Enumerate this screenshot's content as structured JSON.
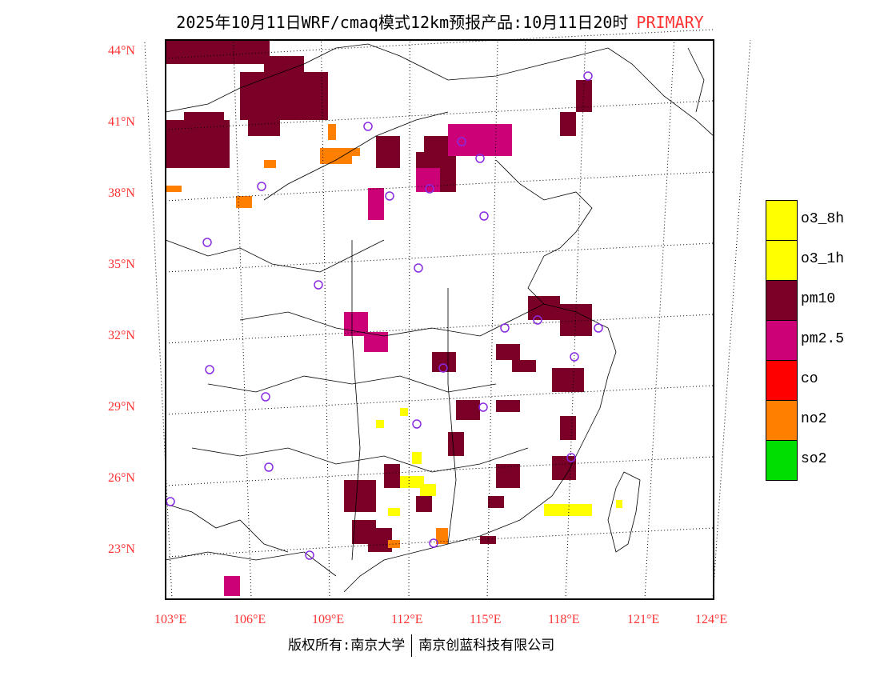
{
  "title": {
    "text": "2025年10月11日WRF/cmaq模式12km预报产品:10月11日20时",
    "tag": "PRIMARY"
  },
  "lat_labels": [
    "44°N",
    "41°N",
    "38°N",
    "35°N",
    "32°N",
    "29°N",
    "26°N",
    "23°N"
  ],
  "lon_labels": [
    "103°E",
    "106°E",
    "109°E",
    "112°E",
    "115°E",
    "118°E",
    "121°E",
    "124°E"
  ],
  "legend": [
    {
      "label": "o3_8h",
      "color": "#ffff00"
    },
    {
      "label": "o3_1h",
      "color": "#ffff00"
    },
    {
      "label": "pm10",
      "color": "#7a0028"
    },
    {
      "label": "pm2.5",
      "color": "#cc0077"
    },
    {
      "label": "co",
      "color": "#ff0000"
    },
    {
      "label": "no2",
      "color": "#ff7f00"
    },
    {
      "label": "so2",
      "color": "#00dd00"
    }
  ],
  "footer": {
    "left": "版权所有:南京大学",
    "right": "南京创蓝科技有限公司"
  }
}
